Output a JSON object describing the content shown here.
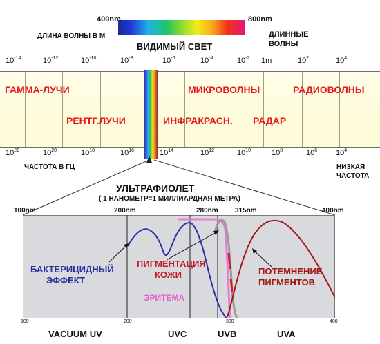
{
  "spectrum_top": {
    "left_nm": "400nm",
    "right_nm": "800nm",
    "visible_light": "ВИДИМЫЙ СВЕТ",
    "wavelength_label": "ДЛИНА ВОЛНЫ В М",
    "long_waves_line1": "ДЛИННЫЕ",
    "long_waves_line2": "ВОЛНЫ"
  },
  "wavelength_ticks": [
    {
      "base": "10",
      "exp": "-14"
    },
    {
      "base": "10",
      "exp": "-12"
    },
    {
      "base": "10",
      "exp": "-10"
    },
    {
      "base": "10",
      "exp": "-8"
    },
    {
      "base": "10",
      "exp": "-6"
    },
    {
      "base": "10",
      "exp": "-4"
    },
    {
      "base": "10",
      "exp": "-2"
    },
    {
      "base": "1m",
      "exp": ""
    },
    {
      "base": "10",
      "exp": "2"
    },
    {
      "base": "10",
      "exp": "4"
    }
  ],
  "bands": {
    "gamma": "ГАММА-ЛУЧИ",
    "xray": "РЕНТГ.ЛУЧИ",
    "microwaves": "МИКРОВОЛНЫ",
    "radiowaves": "РАДИОВОЛНЫ",
    "infrared": "ИНФРАКРАСН.",
    "radar": "РАДАР"
  },
  "frequency_ticks": [
    {
      "base": "10",
      "exp": "22"
    },
    {
      "base": "10",
      "exp": "20"
    },
    {
      "base": "10",
      "exp": "18"
    },
    {
      "base": "10",
      "exp": "16"
    },
    {
      "base": "10",
      "exp": "14"
    },
    {
      "base": "10",
      "exp": "12"
    },
    {
      "base": "10",
      "exp": "10"
    },
    {
      "base": "10",
      "exp": "8"
    },
    {
      "base": "10",
      "exp": "6"
    },
    {
      "base": "10",
      "exp": "4"
    }
  ],
  "frequency_label": "ЧАСТОТА В ГЦ",
  "low_freq_line1": "НИЗКАЯ",
  "low_freq_line2": "ЧАСТОТА",
  "uv": {
    "title": "УЛЬТРАФИОЛЕТ",
    "subtitle": "( 1 НАНОМЕТР=1 МИЛЛИАРДНАЯ МЕТРА)",
    "marks": [
      "100nm",
      "200nm",
      "280nm",
      "315nm",
      "400nm"
    ],
    "axis_ticks": [
      "100",
      "200",
      "300",
      "400"
    ],
    "regions": [
      "VACUUM UV",
      "UVC",
      "UVB",
      "UVA"
    ],
    "bactericidal_line1": "БАКТЕРИЦИДНЫЙ",
    "bactericidal_line2": "ЭФФЕКТ",
    "pigmentation_line1": "ПИГМЕНТАЦИЯ",
    "pigmentation_line2": "КОЖИ",
    "erythema": "ЭРИТЕМА",
    "darkening_line1": "ПОТЕМНЕНИЕ",
    "darkening_line2": "ПИГМЕНТОВ"
  },
  "colors": {
    "band_label_red": "#e8161f",
    "bactericidal": "#2a2ea0",
    "pigmentation": "#c21a2a",
    "erythema": "#e060d0",
    "darkening": "#a21616"
  }
}
